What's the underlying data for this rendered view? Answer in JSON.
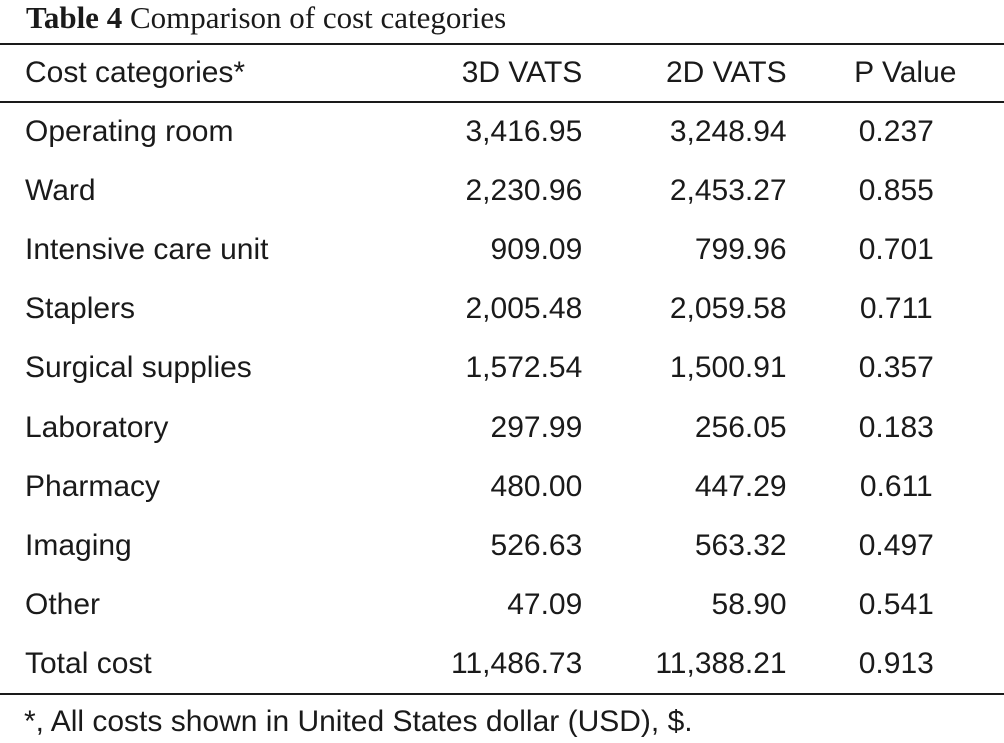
{
  "caption": {
    "label": "Table 4",
    "title": "Comparison of cost categories"
  },
  "table": {
    "headers": [
      "Cost categories*",
      "3D VATS",
      "2D VATS",
      "P Value"
    ],
    "rows": [
      [
        "Operating room",
        "3,416.95",
        "3,248.94",
        "0.237"
      ],
      [
        "Ward",
        "2,230.96",
        "2,453.27",
        "0.855"
      ],
      [
        "Intensive care unit",
        "909.09",
        "799.96",
        "0.701"
      ],
      [
        "Staplers",
        "2,005.48",
        "2,059.58",
        "0.711"
      ],
      [
        "Surgical supplies",
        "1,572.54",
        "1,500.91",
        "0.357"
      ],
      [
        "Laboratory",
        "297.99",
        "256.05",
        "0.183"
      ],
      [
        "Pharmacy",
        "480.00",
        "447.29",
        "0.611"
      ],
      [
        "Imaging",
        "526.63",
        "563.32",
        "0.497"
      ],
      [
        "Other",
        "47.09",
        "58.90",
        "0.541"
      ],
      [
        "Total cost",
        "11,486.73",
        "11,388.21",
        "0.913"
      ]
    ]
  },
  "footnote": "*, All costs shown in United States dollar (USD), $."
}
